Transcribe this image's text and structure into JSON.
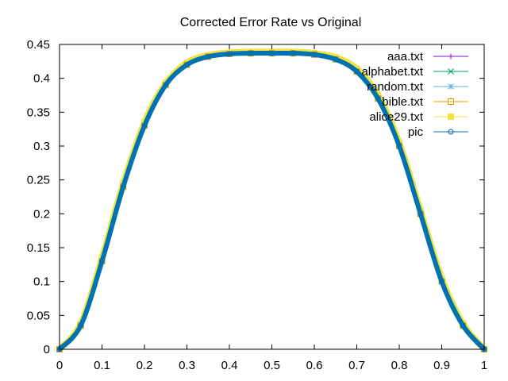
{
  "chart_data": {
    "type": "line",
    "title": "Corrected Error Rate vs Original",
    "xlabel": "",
    "ylabel": "",
    "xlim": [
      0,
      1
    ],
    "ylim": [
      0,
      0.45
    ],
    "x_ticks": [
      "0",
      "0.1",
      "0.2",
      "0.3",
      "0.4",
      "0.5",
      "0.6",
      "0.7",
      "0.8",
      "0.9",
      "1"
    ],
    "y_ticks": [
      "0",
      "0.05",
      "0.1",
      "0.15",
      "0.2",
      "0.25",
      "0.3",
      "0.35",
      "0.4",
      "0.45"
    ],
    "legend_position": "top-right",
    "x": [
      0,
      0.05,
      0.1,
      0.15,
      0.2,
      0.25,
      0.3,
      0.35,
      0.4,
      0.45,
      0.5,
      0.55,
      0.6,
      0.65,
      0.7,
      0.75,
      0.8,
      0.85,
      0.9,
      0.95,
      1
    ],
    "series": [
      {
        "name": "aaa.txt",
        "color": "#9400d3",
        "marker": "plus",
        "values": [
          0,
          0.035,
          0.13,
          0.24,
          0.33,
          0.39,
          0.42,
          0.432,
          0.436,
          0.437,
          0.437,
          0.437,
          0.435,
          0.428,
          0.41,
          0.37,
          0.3,
          0.2,
          0.1,
          0.035,
          0
        ]
      },
      {
        "name": "alphabet.txt",
        "color": "#009e73",
        "marker": "cross",
        "values": [
          0,
          0.035,
          0.13,
          0.24,
          0.33,
          0.39,
          0.42,
          0.432,
          0.436,
          0.437,
          0.437,
          0.437,
          0.435,
          0.428,
          0.41,
          0.37,
          0.3,
          0.2,
          0.1,
          0.035,
          0
        ]
      },
      {
        "name": "random.txt",
        "color": "#56b4e9",
        "marker": "star",
        "values": [
          0,
          0.035,
          0.13,
          0.24,
          0.33,
          0.39,
          0.42,
          0.432,
          0.436,
          0.437,
          0.437,
          0.437,
          0.435,
          0.428,
          0.41,
          0.37,
          0.3,
          0.2,
          0.1,
          0.035,
          0
        ]
      },
      {
        "name": "bible.txt",
        "color": "#e69f00",
        "marker": "square",
        "values": [
          0,
          0.035,
          0.13,
          0.24,
          0.33,
          0.39,
          0.42,
          0.432,
          0.436,
          0.437,
          0.437,
          0.437,
          0.435,
          0.428,
          0.41,
          0.37,
          0.3,
          0.2,
          0.1,
          0.035,
          0
        ]
      },
      {
        "name": "alice29.txt",
        "color": "#f0e442",
        "marker": "filled-square",
        "values": [
          0,
          0.038,
          0.135,
          0.245,
          0.335,
          0.393,
          0.423,
          0.434,
          0.438,
          0.439,
          0.439,
          0.439,
          0.437,
          0.431,
          0.414,
          0.375,
          0.305,
          0.205,
          0.105,
          0.038,
          0
        ]
      },
      {
        "name": "pic",
        "color": "#0072b2",
        "marker": "circle",
        "values": [
          0,
          0.035,
          0.13,
          0.24,
          0.33,
          0.39,
          0.42,
          0.432,
          0.436,
          0.437,
          0.437,
          0.437,
          0.435,
          0.428,
          0.41,
          0.37,
          0.3,
          0.2,
          0.1,
          0.035,
          0
        ]
      }
    ]
  }
}
